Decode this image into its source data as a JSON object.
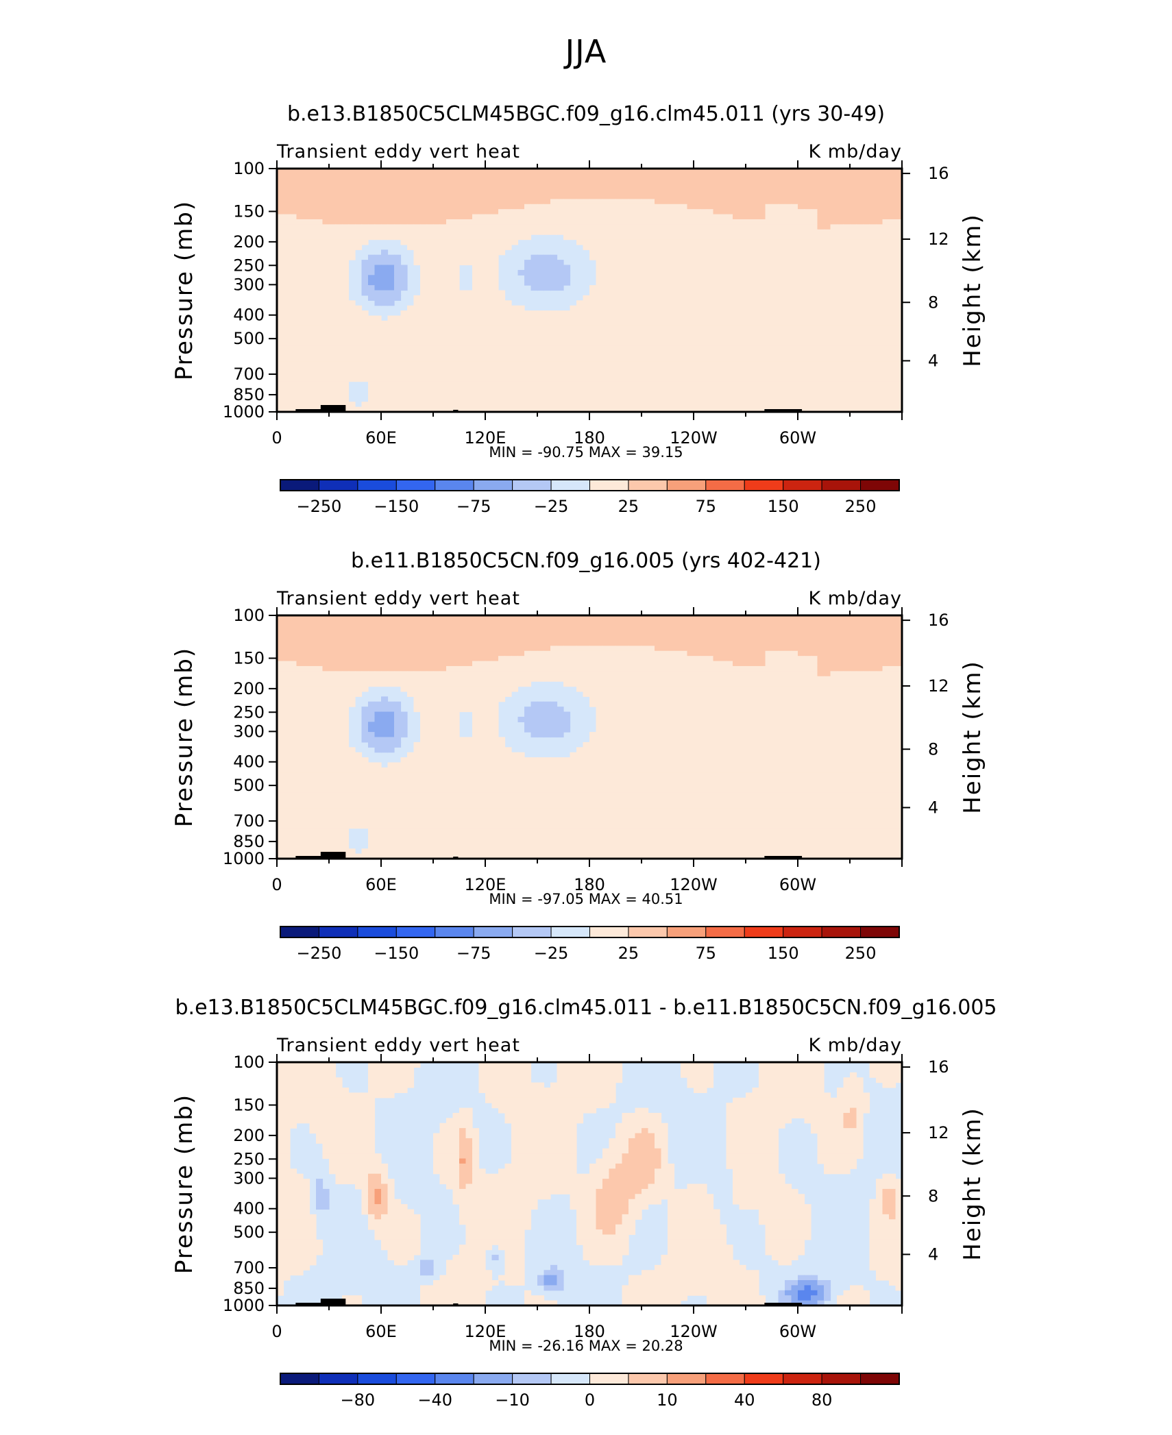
{
  "figure": {
    "main_title": "JJA"
  },
  "colors": {
    "cb11": [
      "#0a1a7a",
      "#0f2fb8",
      "#1a4cdc",
      "#3366f0",
      "#5a86ee",
      "#8aaaf0",
      "#b4c8f5",
      "#d6e7fa",
      "#fde9d9",
      "#fcc8ac",
      "#f7a07a",
      "#f46c46",
      "#ef3c1a",
      "#cc2410",
      "#a8140a",
      "#7e0606"
    ]
  },
  "chart_data": [
    {
      "type": "heatmap",
      "title": "b.e13.B1850C5CLM45BGC.f09_g16.clm45.011 (yrs 30-49)",
      "left_label": "Transient eddy vert heat",
      "right_label": "K mb/day",
      "ylabel": "Pressure (mb)",
      "y2label": "Height (km)",
      "xticks": [
        "0",
        "60E",
        "120E",
        "180",
        "120W",
        "60W"
      ],
      "yticks": [
        "100",
        "150",
        "200",
        "250",
        "300",
        "400",
        "500",
        "700",
        "850",
        "1000"
      ],
      "y2ticks": [
        "16",
        "12",
        "8",
        "4"
      ],
      "min_max": "MIN = -90.75   MAX = 39.15",
      "colorbar_labels": [
        "-250",
        "-150",
        "-75",
        "-25",
        "25",
        "75",
        "150",
        "250"
      ],
      "range": {
        "min": -90.75,
        "max": 39.15
      }
    },
    {
      "type": "heatmap",
      "title": "b.e11.B1850C5CN.f09_g16.005 (yrs 402-421)",
      "left_label": "Transient eddy vert heat",
      "right_label": "K mb/day",
      "ylabel": "Pressure (mb)",
      "y2label": "Height (km)",
      "xticks": [
        "0",
        "60E",
        "120E",
        "180",
        "120W",
        "60W"
      ],
      "yticks": [
        "100",
        "150",
        "200",
        "250",
        "300",
        "400",
        "500",
        "700",
        "850",
        "1000"
      ],
      "y2ticks": [
        "16",
        "12",
        "8",
        "4"
      ],
      "min_max": "MIN = -97.05   MAX = 40.51",
      "colorbar_labels": [
        "-250",
        "-150",
        "-75",
        "-25",
        "25",
        "75",
        "150",
        "250"
      ],
      "range": {
        "min": -97.05,
        "max": 40.51
      }
    },
    {
      "type": "heatmap",
      "title": "b.e13.B1850C5CLM45BGC.f09_g16.clm45.011 - b.e11.B1850C5CN.f09_g16.005",
      "left_label": "Transient eddy vert heat",
      "right_label": "K mb/day",
      "ylabel": "Pressure (mb)",
      "y2label": "Height (km)",
      "xticks": [
        "0",
        "60E",
        "120E",
        "180",
        "120W",
        "60W"
      ],
      "yticks": [
        "100",
        "150",
        "200",
        "250",
        "300",
        "400",
        "500",
        "700",
        "850",
        "1000"
      ],
      "y2ticks": [
        "16",
        "12",
        "8",
        "4"
      ],
      "min_max": "MIN = -26.16   MAX = 20.28",
      "colorbar_labels": [
        "-80",
        "-40",
        "-10",
        "0",
        "10",
        "40",
        "80"
      ],
      "range": {
        "min": -26.16,
        "max": 20.28
      }
    }
  ]
}
